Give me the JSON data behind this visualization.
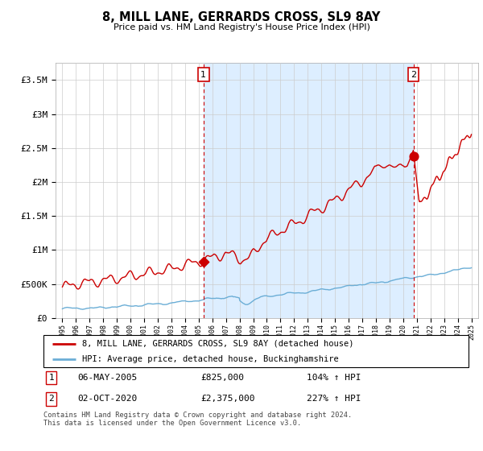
{
  "title": "8, MILL LANE, GERRARDS CROSS, SL9 8AY",
  "subtitle": "Price paid vs. HM Land Registry's House Price Index (HPI)",
  "legend_line1": "8, MILL LANE, GERRARDS CROSS, SL9 8AY (detached house)",
  "legend_line2": "HPI: Average price, detached house, Buckinghamshire",
  "sale1_date": "06-MAY-2005",
  "sale1_price": "£825,000",
  "sale1_hpi": "104% ↑ HPI",
  "sale2_date": "02-OCT-2020",
  "sale2_price": "£2,375,000",
  "sale2_hpi": "227% ↑ HPI",
  "footnote": "Contains HM Land Registry data © Crown copyright and database right 2024.\nThis data is licensed under the Open Government Licence v3.0.",
  "ylim": [
    0,
    3750000
  ],
  "yticks": [
    0,
    500000,
    1000000,
    1500000,
    2000000,
    2500000,
    3000000,
    3500000
  ],
  "ytick_labels": [
    "£0",
    "£500K",
    "£1M",
    "£1.5M",
    "£2M",
    "£2.5M",
    "£3M",
    "£3.5M"
  ],
  "hpi_color": "#6baed6",
  "property_color": "#cc0000",
  "vline_color": "#cc0000",
  "shade_color": "#ddeeff",
  "grid_color": "#cccccc",
  "background_color": "#ffffff",
  "sale1_x_year": 2005.35,
  "sale1_y": 825000,
  "sale2_x_year": 2020.75,
  "sale2_y": 2375000,
  "xlim_start": 1994.5,
  "xlim_end": 2025.5
}
